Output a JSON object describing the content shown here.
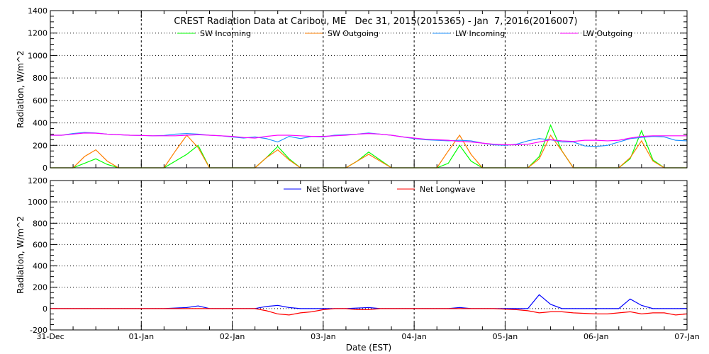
{
  "chart_data": [
    {
      "type": "line",
      "title": "CREST Radiation Data at Caribou, ME   Dec 31, 2015(2015365) - Jan  7, 2016(2016007)",
      "ylabel": "Radiation, W/m^2",
      "xlabel": "",
      "ylim": [
        0,
        1400
      ],
      "yticks": [
        "0",
        "200",
        "400",
        "600",
        "800",
        "1000",
        "1200",
        "1400"
      ],
      "xlim": [
        0,
        7
      ],
      "grid": true,
      "legend_placement": "top-center",
      "x": [
        0,
        0.125,
        0.25,
        0.375,
        0.5,
        0.625,
        0.75,
        0.875,
        1,
        1.125,
        1.25,
        1.375,
        1.5,
        1.625,
        1.75,
        1.875,
        2,
        2.125,
        2.25,
        2.375,
        2.5,
        2.625,
        2.75,
        2.875,
        3,
        3.125,
        3.25,
        3.375,
        3.5,
        3.625,
        3.75,
        3.875,
        4,
        4.125,
        4.25,
        4.375,
        4.5,
        4.625,
        4.75,
        4.875,
        5,
        5.125,
        5.25,
        5.375,
        5.5,
        5.625,
        5.75,
        5.875,
        6,
        6.125,
        6.25,
        6.375,
        6.5,
        6.625,
        6.75,
        6.875,
        7
      ],
      "series": [
        {
          "name": "SW Incoming",
          "color": "#00ff00",
          "values": [
            0,
            0,
            0,
            40,
            80,
            30,
            0,
            0,
            0,
            0,
            0,
            60,
            120,
            200,
            0,
            0,
            0,
            0,
            0,
            90,
            190,
            80,
            0,
            0,
            0,
            0,
            0,
            60,
            140,
            70,
            0,
            0,
            0,
            0,
            0,
            40,
            200,
            60,
            0,
            0,
            0,
            0,
            0,
            100,
            380,
            150,
            0,
            0,
            0,
            0,
            0,
            80,
            330,
            70,
            0,
            0,
            0
          ]
        },
        {
          "name": "SW Outgoing",
          "color": "#ff7f00",
          "values": [
            0,
            0,
            0,
            100,
            160,
            60,
            0,
            0,
            0,
            0,
            0,
            150,
            290,
            180,
            0,
            0,
            0,
            0,
            0,
            90,
            160,
            70,
            0,
            0,
            0,
            0,
            0,
            60,
            120,
            60,
            0,
            0,
            0,
            0,
            0,
            150,
            290,
            120,
            0,
            0,
            0,
            0,
            0,
            80,
            290,
            150,
            0,
            0,
            0,
            0,
            0,
            90,
            240,
            60,
            0,
            0,
            0
          ]
        },
        {
          "name": "LW Incoming",
          "color": "#1e90ff",
          "values": [
            290,
            290,
            305,
            315,
            310,
            300,
            295,
            290,
            288,
            285,
            288,
            300,
            305,
            300,
            290,
            285,
            275,
            265,
            275,
            260,
            230,
            280,
            260,
            280,
            275,
            290,
            295,
            300,
            310,
            300,
            290,
            275,
            260,
            250,
            245,
            240,
            245,
            240,
            220,
            205,
            200,
            210,
            240,
            260,
            250,
            230,
            230,
            195,
            190,
            200,
            230,
            260,
            270,
            280,
            275,
            245,
            240
          ]
        },
        {
          "name": "LW Outgoing",
          "color": "#ff00ff",
          "values": [
            290,
            290,
            300,
            310,
            308,
            300,
            295,
            290,
            288,
            285,
            285,
            285,
            290,
            295,
            290,
            285,
            280,
            270,
            265,
            280,
            290,
            290,
            285,
            280,
            280,
            285,
            290,
            300,
            305,
            300,
            290,
            275,
            265,
            255,
            250,
            245,
            235,
            230,
            220,
            210,
            205,
            205,
            210,
            230,
            250,
            240,
            235,
            245,
            245,
            240,
            245,
            265,
            280,
            285,
            285,
            285,
            285
          ]
        }
      ]
    },
    {
      "type": "line",
      "title": "",
      "ylabel": "Radiation, W/m^2",
      "xlabel": "Date (EST)",
      "ylim": [
        -200,
        1200
      ],
      "yticks": [
        "-200",
        "0",
        "200",
        "400",
        "600",
        "800",
        "1000",
        "1200"
      ],
      "xlim": [
        0,
        7
      ],
      "xticks": [
        "31-Dec",
        "01-Jan",
        "02-Jan",
        "03-Jan",
        "04-Jan",
        "05-Jan",
        "06-Jan",
        "07-Jan"
      ],
      "grid": true,
      "legend_placement": "top-center",
      "x": [
        0,
        0.125,
        0.25,
        0.375,
        0.5,
        0.625,
        0.75,
        0.875,
        1,
        1.125,
        1.25,
        1.375,
        1.5,
        1.625,
        1.75,
        1.875,
        2,
        2.125,
        2.25,
        2.375,
        2.5,
        2.625,
        2.75,
        2.875,
        3,
        3.125,
        3.25,
        3.375,
        3.5,
        3.625,
        3.75,
        3.875,
        4,
        4.125,
        4.25,
        4.375,
        4.5,
        4.625,
        4.75,
        4.875,
        5,
        5.125,
        5.25,
        5.375,
        5.5,
        5.625,
        5.75,
        5.875,
        6,
        6.125,
        6.25,
        6.375,
        6.5,
        6.625,
        6.75,
        6.875,
        7
      ],
      "series": [
        {
          "name": "Net Shortwave",
          "color": "#0000ff",
          "values": [
            0,
            0,
            0,
            0,
            0,
            0,
            0,
            0,
            0,
            0,
            0,
            5,
            10,
            25,
            0,
            0,
            0,
            0,
            0,
            20,
            30,
            10,
            0,
            0,
            0,
            0,
            0,
            5,
            10,
            0,
            0,
            0,
            0,
            0,
            0,
            0,
            10,
            0,
            0,
            0,
            0,
            0,
            0,
            130,
            40,
            0,
            0,
            0,
            0,
            0,
            0,
            90,
            30,
            0,
            0,
            0,
            0
          ]
        },
        {
          "name": "Net Longwave",
          "color": "#ff0000",
          "values": [
            0,
            0,
            0,
            0,
            0,
            0,
            0,
            0,
            0,
            0,
            0,
            0,
            0,
            0,
            0,
            0,
            0,
            0,
            0,
            -20,
            -50,
            -60,
            -40,
            -30,
            -10,
            0,
            0,
            -10,
            -10,
            0,
            0,
            0,
            0,
            0,
            0,
            0,
            0,
            0,
            0,
            0,
            -5,
            -10,
            -20,
            -40,
            -30,
            -30,
            -40,
            -45,
            -50,
            -50,
            -40,
            -30,
            -50,
            -40,
            -40,
            -60,
            -50
          ]
        }
      ]
    }
  ]
}
